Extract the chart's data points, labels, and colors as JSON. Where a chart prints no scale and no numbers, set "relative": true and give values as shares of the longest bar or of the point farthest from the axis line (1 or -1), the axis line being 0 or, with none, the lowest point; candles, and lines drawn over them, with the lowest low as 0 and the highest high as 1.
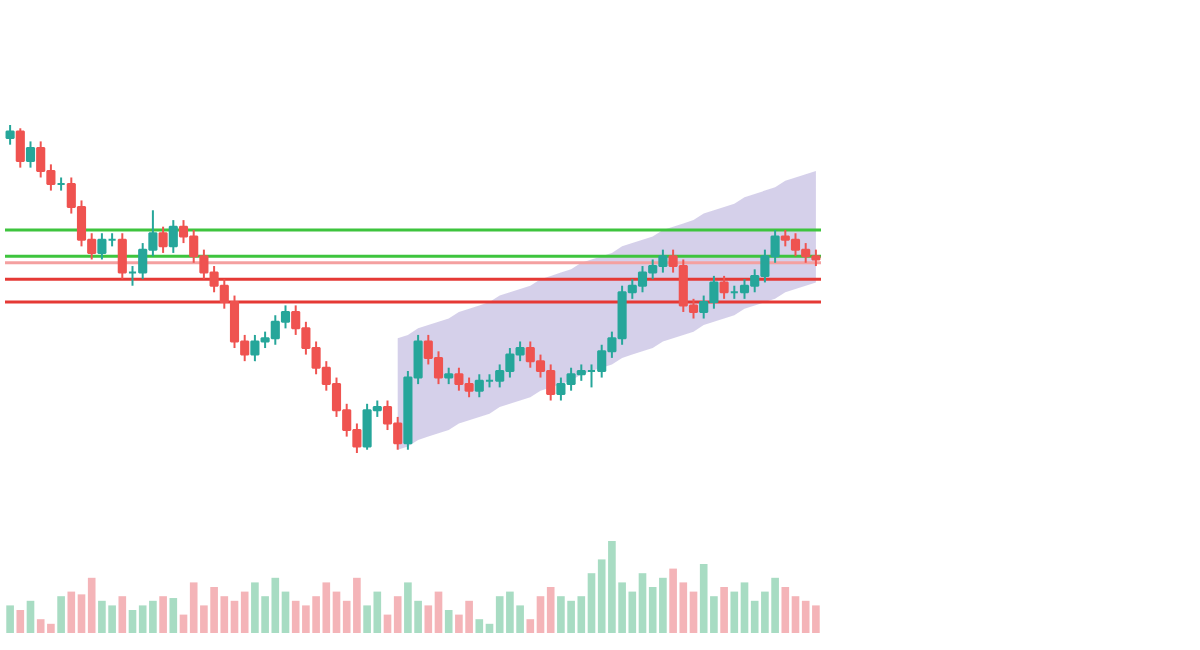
{
  "chart_data": [
    {
      "type": "candlestick",
      "relative": true,
      "tick_labels": false,
      "categories": [
        null,
        null,
        null,
        null,
        null,
        null,
        null,
        null,
        null,
        null,
        null,
        null,
        null,
        null,
        null,
        null,
        null,
        null,
        null,
        null,
        null,
        null,
        null,
        null,
        null,
        null,
        null,
        null,
        null,
        null,
        null,
        null,
        null,
        null,
        null,
        null,
        null,
        null,
        null,
        null,
        null,
        null,
        null,
        null,
        null,
        null,
        null,
        null,
        null,
        null,
        null,
        null,
        null,
        null,
        null,
        null,
        null,
        null,
        null,
        null,
        null,
        null,
        null,
        null,
        null,
        null,
        null,
        null,
        null,
        null,
        null,
        null,
        null,
        null,
        null,
        null,
        null,
        null,
        null,
        null
      ],
      "ohlc": [
        [
          0.96,
          1.0,
          0.94,
          0.98
        ],
        [
          0.98,
          0.99,
          0.87,
          0.89
        ],
        [
          0.89,
          0.95,
          0.87,
          0.93
        ],
        [
          0.93,
          0.95,
          0.84,
          0.86
        ],
        [
          0.86,
          0.88,
          0.8,
          0.82
        ],
        [
          0.82,
          0.84,
          0.8,
          0.82
        ],
        [
          0.82,
          0.84,
          0.73,
          0.75
        ],
        [
          0.75,
          0.77,
          0.63,
          0.65
        ],
        [
          0.65,
          0.67,
          0.59,
          0.61
        ],
        [
          0.61,
          0.67,
          0.59,
          0.65
        ],
        [
          0.65,
          0.67,
          0.63,
          0.65
        ],
        [
          0.65,
          0.67,
          0.53,
          0.55
        ],
        [
          0.55,
          0.57,
          0.51,
          0.55
        ],
        [
          0.55,
          0.64,
          0.53,
          0.62
        ],
        [
          0.62,
          0.74,
          0.6,
          0.67
        ],
        [
          0.67,
          0.69,
          0.61,
          0.63
        ],
        [
          0.63,
          0.71,
          0.61,
          0.69
        ],
        [
          0.69,
          0.71,
          0.64,
          0.66
        ],
        [
          0.66,
          0.68,
          0.58,
          0.6
        ],
        [
          0.6,
          0.62,
          0.53,
          0.55
        ],
        [
          0.55,
          0.57,
          0.49,
          0.51
        ],
        [
          0.51,
          0.53,
          0.44,
          0.46
        ],
        [
          0.46,
          0.48,
          0.32,
          0.34
        ],
        [
          0.34,
          0.36,
          0.28,
          0.3
        ],
        [
          0.3,
          0.36,
          0.28,
          0.34
        ],
        [
          0.34,
          0.37,
          0.32,
          0.35
        ],
        [
          0.35,
          0.42,
          0.33,
          0.4
        ],
        [
          0.4,
          0.45,
          0.38,
          0.43
        ],
        [
          0.43,
          0.45,
          0.36,
          0.38
        ],
        [
          0.38,
          0.4,
          0.3,
          0.32
        ],
        [
          0.32,
          0.34,
          0.24,
          0.26
        ],
        [
          0.26,
          0.28,
          0.19,
          0.21
        ],
        [
          0.21,
          0.23,
          0.11,
          0.13
        ],
        [
          0.13,
          0.15,
          0.05,
          0.07
        ],
        [
          0.07,
          0.09,
          0.0,
          0.02
        ],
        [
          0.02,
          0.15,
          0.01,
          0.13
        ],
        [
          0.13,
          0.16,
          0.11,
          0.14
        ],
        [
          0.14,
          0.16,
          0.07,
          0.09
        ],
        [
          0.09,
          0.11,
          0.01,
          0.03
        ],
        [
          0.03,
          0.25,
          0.01,
          0.23
        ],
        [
          0.23,
          0.36,
          0.21,
          0.34
        ],
        [
          0.34,
          0.36,
          0.27,
          0.29
        ],
        [
          0.29,
          0.31,
          0.21,
          0.23
        ],
        [
          0.23,
          0.26,
          0.21,
          0.24
        ],
        [
          0.24,
          0.26,
          0.19,
          0.21
        ],
        [
          0.21,
          0.23,
          0.17,
          0.19
        ],
        [
          0.19,
          0.24,
          0.17,
          0.22
        ],
        [
          0.22,
          0.24,
          0.2,
          0.22
        ],
        [
          0.22,
          0.27,
          0.2,
          0.25
        ],
        [
          0.25,
          0.32,
          0.23,
          0.3
        ],
        [
          0.3,
          0.34,
          0.28,
          0.32
        ],
        [
          0.32,
          0.34,
          0.26,
          0.28
        ],
        [
          0.28,
          0.3,
          0.23,
          0.25
        ],
        [
          0.25,
          0.27,
          0.16,
          0.18
        ],
        [
          0.18,
          0.23,
          0.16,
          0.21
        ],
        [
          0.21,
          0.26,
          0.19,
          0.24
        ],
        [
          0.24,
          0.27,
          0.22,
          0.25
        ],
        [
          0.25,
          0.27,
          0.2,
          0.25
        ],
        [
          0.25,
          0.33,
          0.23,
          0.31
        ],
        [
          0.31,
          0.37,
          0.29,
          0.35
        ],
        [
          0.35,
          0.51,
          0.33,
          0.49
        ],
        [
          0.49,
          0.53,
          0.47,
          0.51
        ],
        [
          0.51,
          0.57,
          0.49,
          0.55
        ],
        [
          0.55,
          0.59,
          0.53,
          0.57
        ],
        [
          0.57,
          0.62,
          0.55,
          0.6
        ],
        [
          0.6,
          0.62,
          0.55,
          0.57
        ],
        [
          0.57,
          0.59,
          0.43,
          0.45
        ],
        [
          0.45,
          0.47,
          0.41,
          0.43
        ],
        [
          0.43,
          0.48,
          0.41,
          0.46
        ],
        [
          0.46,
          0.54,
          0.44,
          0.52
        ],
        [
          0.52,
          0.54,
          0.47,
          0.49
        ],
        [
          0.49,
          0.51,
          0.47,
          0.49
        ],
        [
          0.49,
          0.53,
          0.47,
          0.51
        ],
        [
          0.51,
          0.56,
          0.49,
          0.54
        ],
        [
          0.54,
          0.62,
          0.52,
          0.6
        ],
        [
          0.6,
          0.68,
          0.58,
          0.66
        ],
        [
          0.66,
          0.68,
          0.63,
          0.65
        ],
        [
          0.65,
          0.67,
          0.6,
          0.62
        ],
        [
          0.62,
          0.64,
          0.58,
          0.6
        ],
        [
          0.6,
          0.62,
          0.57,
          0.59
        ]
      ],
      "colors": [
        "#26a69a",
        "#ef5350",
        "#26a69a",
        "#ef5350",
        "#ef5350",
        "#26a69a",
        "#ef5350",
        "#ef5350",
        "#ef5350",
        "#26a69a",
        "#26a69a",
        "#ef5350",
        "#26a69a",
        "#26a69a",
        "#26a69a",
        "#ef5350",
        "#26a69a",
        "#ef5350",
        "#ef5350",
        "#ef5350",
        "#ef5350",
        "#ef5350",
        "#ef5350",
        "#ef5350",
        "#26a69a",
        "#26a69a",
        "#26a69a",
        "#26a69a",
        "#ef5350",
        "#ef5350",
        "#ef5350",
        "#ef5350",
        "#ef5350",
        "#ef5350",
        "#ef5350",
        "#26a69a",
        "#26a69a",
        "#ef5350",
        "#ef5350",
        "#26a69a",
        "#26a69a",
        "#ef5350",
        "#ef5350",
        "#26a69a",
        "#ef5350",
        "#ef5350",
        "#26a69a",
        "#26a69a",
        "#26a69a",
        "#26a69a",
        "#26a69a",
        "#ef5350",
        "#ef5350",
        "#ef5350",
        "#26a69a",
        "#26a69a",
        "#26a69a",
        "#26a69a",
        "#26a69a",
        "#26a69a",
        "#26a69a",
        "#26a69a",
        "#26a69a",
        "#26a69a",
        "#26a69a",
        "#ef5350",
        "#ef5350",
        "#ef5350",
        "#26a69a",
        "#26a69a",
        "#ef5350",
        "#26a69a",
        "#26a69a",
        "#26a69a",
        "#26a69a",
        "#26a69a",
        "#ef5350",
        "#ef5350",
        "#ef5350",
        "#ef5350"
      ],
      "series": [
        {
          "type": "line",
          "color": "#b3aad9",
          "values": [
            null,
            null,
            null,
            null,
            null,
            null,
            null,
            null,
            null,
            null,
            null,
            null,
            null,
            null,
            null,
            null,
            null,
            null,
            null,
            null,
            null,
            null,
            null,
            null,
            null,
            null,
            null,
            null,
            null,
            null,
            null,
            null,
            null,
            null,
            null,
            null,
            null,
            null,
            null,
            null,
            null,
            null,
            null,
            null,
            null,
            null,
            null,
            null,
            null,
            null,
            null,
            null,
            null,
            null,
            null,
            null,
            null,
            null,
            null,
            null,
            null,
            null,
            null,
            null,
            null,
            null,
            null,
            null,
            null,
            null,
            null,
            null,
            null,
            null,
            null,
            null,
            null,
            null,
            null,
            null
          ],
          "lower": [
            null,
            null,
            null,
            null,
            null,
            null,
            null,
            null,
            null,
            null,
            null,
            null,
            null,
            null,
            null,
            null,
            null,
            null,
            null,
            null,
            null,
            null,
            null,
            null,
            null,
            null,
            null,
            null,
            null,
            null,
            null,
            null,
            null,
            null,
            null,
            null,
            null,
            null,
            0.01,
            0.02,
            0.04,
            0.05,
            0.06,
            0.07,
            0.09,
            0.1,
            0.11,
            0.12,
            0.14,
            0.15,
            0.16,
            0.17,
            0.19,
            0.2,
            0.21,
            0.22,
            0.24,
            0.25,
            0.26,
            0.27,
            0.29,
            0.3,
            0.31,
            0.32,
            0.34,
            0.35,
            0.36,
            0.37,
            0.39,
            0.4,
            0.41,
            0.42,
            0.44,
            0.45,
            0.46,
            0.47,
            0.49,
            0.5,
            0.51,
            0.52
          ],
          "upper": [
            null,
            null,
            null,
            null,
            null,
            null,
            null,
            null,
            null,
            null,
            null,
            null,
            null,
            null,
            null,
            null,
            null,
            null,
            null,
            null,
            null,
            null,
            null,
            null,
            null,
            null,
            null,
            null,
            null,
            null,
            null,
            null,
            null,
            null,
            null,
            null,
            null,
            null,
            0.35,
            0.36,
            0.38,
            0.39,
            0.4,
            0.41,
            0.43,
            0.44,
            0.45,
            0.46,
            0.48,
            0.49,
            0.5,
            0.51,
            0.53,
            0.54,
            0.55,
            0.56,
            0.58,
            0.59,
            0.6,
            0.61,
            0.63,
            0.64,
            0.65,
            0.66,
            0.68,
            0.69,
            0.7,
            0.71,
            0.73,
            0.74,
            0.75,
            0.76,
            0.78,
            0.79,
            0.8,
            0.81,
            0.83,
            0.84,
            0.85,
            0.86
          ]
        }
      ],
      "ref_lines": [
        {
          "axis": "y",
          "value": 0.68,
          "color": "#3ec43e"
        },
        {
          "axis": "y",
          "value": 0.6,
          "color": "#3ec43e"
        },
        {
          "axis": "y",
          "value": 0.58,
          "color": "#f4a0a0"
        },
        {
          "axis": "y",
          "value": 0.53,
          "color": "#e53935"
        },
        {
          "axis": "y",
          "value": 0.46,
          "color": "#e53935"
        }
      ]
    },
    {
      "type": "bar",
      "relative": true,
      "tick_labels": false,
      "categories": [
        null,
        null,
        null,
        null,
        null,
        null,
        null,
        null,
        null,
        null,
        null,
        null,
        null,
        null,
        null,
        null,
        null,
        null,
        null,
        null,
        null,
        null,
        null,
        null,
        null,
        null,
        null,
        null,
        null,
        null,
        null,
        null,
        null,
        null,
        null,
        null,
        null,
        null,
        null,
        null,
        null,
        null,
        null,
        null,
        null,
        null,
        null,
        null,
        null,
        null,
        null,
        null,
        null,
        null,
        null,
        null,
        null,
        null,
        null,
        null,
        null,
        null,
        null,
        null,
        null,
        null,
        null,
        null,
        null,
        null,
        null,
        null,
        null,
        null,
        null,
        null,
        null,
        null,
        null,
        null
      ],
      "values": [
        0.3,
        0.25,
        0.35,
        0.15,
        0.1,
        0.4,
        0.45,
        0.42,
        0.6,
        0.35,
        0.3,
        0.4,
        0.25,
        0.3,
        0.35,
        0.4,
        0.38,
        0.2,
        0.55,
        0.3,
        0.5,
        0.4,
        0.35,
        0.45,
        0.55,
        0.4,
        0.6,
        0.45,
        0.35,
        0.3,
        0.4,
        0.55,
        0.45,
        0.35,
        0.6,
        0.3,
        0.45,
        0.2,
        0.4,
        0.55,
        0.35,
        0.3,
        0.45,
        0.25,
        0.2,
        0.35,
        0.15,
        0.1,
        0.4,
        0.45,
        0.3,
        0.15,
        0.4,
        0.5,
        0.4,
        0.35,
        0.4,
        0.65,
        0.8,
        1.0,
        0.55,
        0.45,
        0.65,
        0.5,
        0.6,
        0.7,
        0.55,
        0.45,
        0.75,
        0.4,
        0.5,
        0.45,
        0.55,
        0.35,
        0.45,
        0.6,
        0.5,
        0.4,
        0.35,
        0.3
      ],
      "colors": [
        "#a8dcc3",
        "#f4b4b8",
        "#a8dcc3",
        "#f4b4b8",
        "#f4b4b8",
        "#a8dcc3",
        "#f4b4b8",
        "#f4b4b8",
        "#f4b4b8",
        "#a8dcc3",
        "#a8dcc3",
        "#f4b4b8",
        "#a8dcc3",
        "#a8dcc3",
        "#a8dcc3",
        "#f4b4b8",
        "#a8dcc3",
        "#f4b4b8",
        "#f4b4b8",
        "#f4b4b8",
        "#f4b4b8",
        "#f4b4b8",
        "#f4b4b8",
        "#f4b4b8",
        "#a8dcc3",
        "#a8dcc3",
        "#a8dcc3",
        "#a8dcc3",
        "#f4b4b8",
        "#f4b4b8",
        "#f4b4b8",
        "#f4b4b8",
        "#f4b4b8",
        "#f4b4b8",
        "#f4b4b8",
        "#a8dcc3",
        "#a8dcc3",
        "#f4b4b8",
        "#f4b4b8",
        "#a8dcc3",
        "#a8dcc3",
        "#f4b4b8",
        "#f4b4b8",
        "#a8dcc3",
        "#f4b4b8",
        "#f4b4b8",
        "#a8dcc3",
        "#a8dcc3",
        "#a8dcc3",
        "#a8dcc3",
        "#a8dcc3",
        "#f4b4b8",
        "#f4b4b8",
        "#f4b4b8",
        "#a8dcc3",
        "#a8dcc3",
        "#a8dcc3",
        "#a8dcc3",
        "#a8dcc3",
        "#a8dcc3",
        "#a8dcc3",
        "#a8dcc3",
        "#a8dcc3",
        "#a8dcc3",
        "#a8dcc3",
        "#f4b4b8",
        "#f4b4b8",
        "#f4b4b8",
        "#a8dcc3",
        "#a8dcc3",
        "#f4b4b8",
        "#a8dcc3",
        "#a8dcc3",
        "#a8dcc3",
        "#a8dcc3",
        "#a8dcc3",
        "#f4b4b8",
        "#f4b4b8",
        "#f4b4b8",
        "#f4b4b8"
      ]
    }
  ]
}
